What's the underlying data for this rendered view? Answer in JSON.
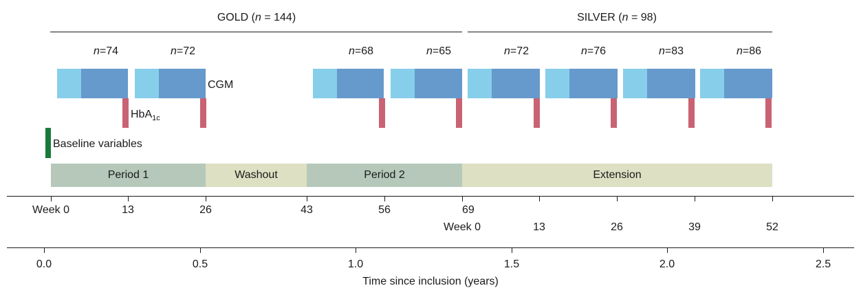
{
  "cohorts": {
    "gold": {
      "name": "GOLD",
      "n_label": "n",
      "n_value": "= 144"
    },
    "silver": {
      "name": "SILVER",
      "n_label": "n",
      "n_value": "= 98"
    }
  },
  "cgm_blocks": [
    {
      "n_label": "n",
      "n_value": "=74"
    },
    {
      "n_label": "n",
      "n_value": "=72"
    },
    {
      "n_label": "n",
      "n_value": "=68"
    },
    {
      "n_label": "n",
      "n_value": "=65"
    },
    {
      "n_label": "n",
      "n_value": "=72"
    },
    {
      "n_label": "n",
      "n_value": "=76"
    },
    {
      "n_label": "n",
      "n_value": "=83"
    },
    {
      "n_label": "n",
      "n_value": "=86"
    }
  ],
  "labels": {
    "cgm": "CGM",
    "hba1c_main": "HbA",
    "hba1c_sub": "1c",
    "baseline": "Baseline variables"
  },
  "periods": [
    {
      "label": "Period 1",
      "color": "#b5c8ba"
    },
    {
      "label": "Washout",
      "color": "#dde0c2"
    },
    {
      "label": "Period 2",
      "color": "#b5c8ba"
    },
    {
      "label": "Extension",
      "color": "#dde0c2"
    }
  ],
  "weeks_gold": [
    "Week 0",
    "13",
    "26",
    "43",
    "56",
    "69"
  ],
  "weeks_silver": [
    "Week 0",
    "13",
    "26",
    "39",
    "52"
  ],
  "years_axis": {
    "ticks": [
      "0.0",
      "0.5",
      "1.0",
      "1.5",
      "2.0",
      "2.5"
    ],
    "label": "Time since inclusion (years)"
  },
  "colors": {
    "cgm_light": "#87ceeb",
    "cgm_dark": "#6699cc",
    "hba1c": "#c96272",
    "baseline": "#1a7a3a"
  }
}
